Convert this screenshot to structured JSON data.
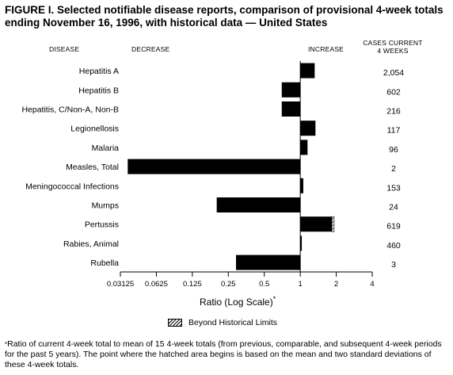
{
  "figure": {
    "title": "FIGURE I. Selected notifiable disease reports, comparison of provisional 4-week totals ending November 16, 1996, with historical data — United States",
    "col_disease": "DISEASE",
    "col_decrease": "DECREASE",
    "col_increase": "INCREASE",
    "col_cases": "CASES CURRENT\n4 WEEKS",
    "xaxis_label": "Ratio (Log Scale)",
    "xaxis_label_marker": "*",
    "legend_label": "Beyond Historical Limits",
    "footnote_marker": "*",
    "footnote": "Ratio of current 4-week total to mean of 15 4-week totals (from previous, comparable, and subsequent 4-week periods for the past 5 years). The point where the hatched area begins is based on the mean and two standard deviations of these 4-week totals."
  },
  "chart_data": {
    "type": "bar",
    "orientation": "horizontal",
    "x_scale": "log2",
    "xlim": [
      0.03125,
      4
    ],
    "xticks": [
      "0.03125",
      "0.0625",
      "0.125",
      "0.25",
      "0.5",
      "1",
      "2",
      "4"
    ],
    "baseline": 1,
    "categories": [
      "Hepatitis A",
      "Hepatitis B",
      "Hepatitis, C/Non-A, Non-B",
      "Legionellosis",
      "Malaria",
      "Measles, Total",
      "Meningococcal Infections",
      "Mumps",
      "Pertussis",
      "Rabies, Animal",
      "Rubella"
    ],
    "values": [
      1.32,
      0.7,
      0.7,
      1.34,
      1.15,
      0.036,
      1.06,
      0.2,
      1.92,
      1.03,
      0.29
    ],
    "beyond_historical_limits_from": [
      null,
      null,
      null,
      null,
      null,
      null,
      null,
      null,
      1.84,
      null,
      null
    ],
    "cases_current_4_weeks": [
      "2,054",
      "602",
      "216",
      "117",
      "96",
      "2",
      "153",
      "24",
      "619",
      "460",
      "3"
    ]
  }
}
